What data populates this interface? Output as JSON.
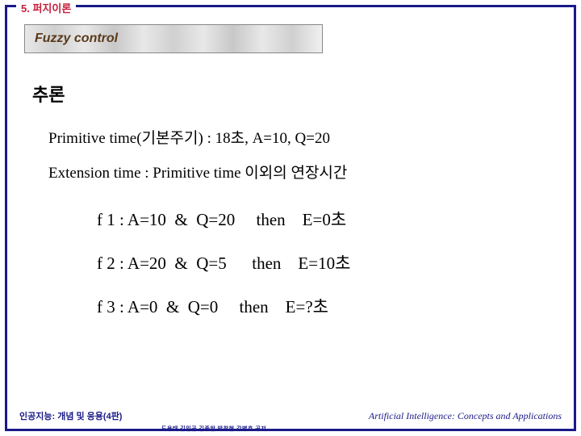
{
  "chapter": "5. 퍼지이론",
  "title": "Fuzzy control",
  "heading": "추론",
  "line1": "Primitive time(기본주기) : 18초,  A=10, Q=20",
  "line2": "Extension time : Primitive time 이외의 연장시간",
  "rules": {
    "r1": "f 1 : A=10  &  Q=20     then    E=0초",
    "r2": "f 2 : A=20  &  Q=5      then    E=10초",
    "r3": "f 3 : A=0  &  Q=0     then    E=?초"
  },
  "footer": {
    "left": "인공지능: 개념 및 응용(4판)",
    "mid": "도용태 김일곤 김종완 박창현 강병호 공저",
    "right": "Artificial Intelligence: Concepts and Applications"
  },
  "colors": {
    "border": "#1a1a8a",
    "chapter": "#c41e3a",
    "title_text": "#5a3a1a"
  }
}
